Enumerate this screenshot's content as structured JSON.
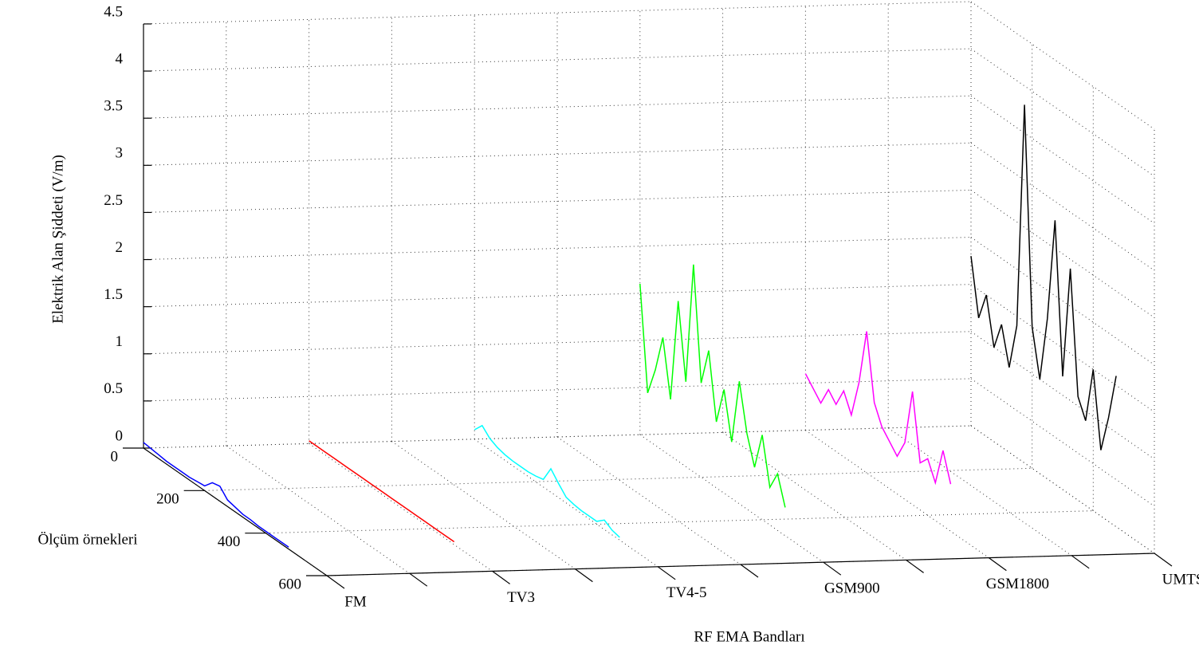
{
  "chart_data": {
    "type": "line3d",
    "x_label": "RF EMA Bandları",
    "y_label": "Ölçüm örnekleri",
    "z_label": "Elektrik Alan Şiddeti (V/m)",
    "categories": [
      "FM",
      "TV3",
      "TV4-5",
      "GSM900",
      "GSM1800",
      "UMTS"
    ],
    "ylim": [
      0,
      600
    ],
    "yticks": [
      0,
      200,
      400,
      600
    ],
    "zlim": [
      0,
      4.5
    ],
    "zticks": [
      0,
      0.5,
      1,
      1.5,
      2,
      2.5,
      3,
      3.5,
      4,
      4.5
    ],
    "grid": true,
    "x": [
      0,
      25,
      50,
      75,
      100,
      125,
      150,
      175,
      200,
      225,
      250,
      275,
      300,
      325,
      350,
      375,
      400,
      425,
      450,
      475
    ],
    "series": [
      {
        "name": "FM",
        "color": "#0000ff",
        "values": [
          0.06,
          0.05,
          0.04,
          0.03,
          0.03,
          0.03,
          0.03,
          0.04,
          0.05,
          0.14,
          0.16,
          0.07,
          0.05,
          0.03,
          0.03,
          0.02,
          0.02,
          0.02,
          0.02,
          0.02
        ]
      },
      {
        "name": "TV3",
        "color": "#ff0000",
        "values": [
          0.03,
          0.03,
          0.03,
          0.03,
          0.03,
          0.03,
          0.03,
          0.03,
          0.03,
          0.03,
          0.03,
          0.03,
          0.03,
          0.03,
          0.03,
          0.03,
          0.03,
          0.03,
          0.03,
          0.03
        ]
      },
      {
        "name": "TV4-5",
        "color": "#00ffff",
        "values": [
          0.1,
          0.2,
          0.12,
          0.08,
          0.06,
          0.05,
          0.05,
          0.05,
          0.06,
          0.08,
          0.25,
          0.15,
          0.06,
          0.04,
          0.03,
          0.03,
          0.03,
          0.1,
          0.05,
          0.03
        ]
      },
      {
        "name": "GSM900",
        "color": "#00ff00",
        "values": [
          1.6,
          0.5,
          0.8,
          1.2,
          0.6,
          1.7,
          0.9,
          2.2,
          1.0,
          1.4,
          0.7,
          1.1,
          0.6,
          1.3,
          0.8,
          0.5,
          0.9,
          0.4,
          0.6,
          0.3
        ]
      },
      {
        "name": "GSM1800",
        "color": "#ff00ff",
        "values": [
          0.6,
          0.5,
          0.4,
          0.6,
          0.5,
          0.7,
          0.5,
          0.9,
          1.5,
          0.8,
          0.6,
          0.5,
          0.4,
          0.6,
          1.2,
          0.5,
          0.6,
          0.4,
          0.8,
          0.5
        ]
      },
      {
        "name": "UMTS",
        "color": "#000000",
        "values": [
          1.8,
          1.2,
          1.5,
          1.0,
          1.3,
          0.9,
          1.4,
          3.8,
          1.5,
          1.0,
          1.7,
          2.8,
          1.2,
          2.4,
          1.1,
          0.9,
          1.5,
          0.7,
          1.1,
          1.6
        ]
      }
    ]
  }
}
